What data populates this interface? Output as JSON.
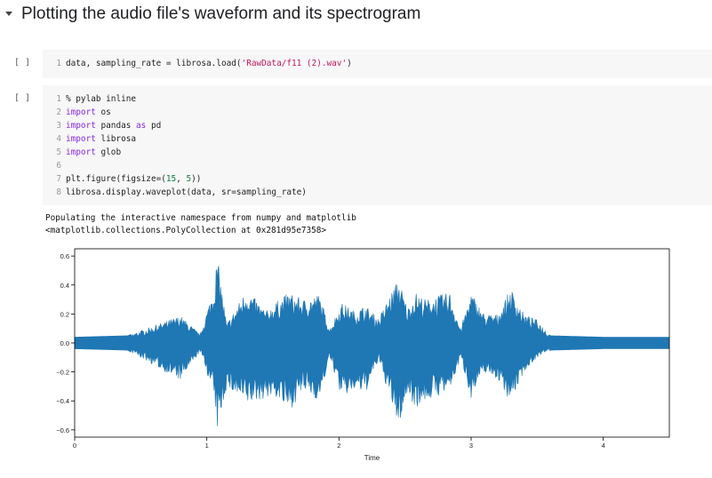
{
  "section": {
    "title": "Plotting the audio file's waveform and its spectrogram"
  },
  "cells": [
    {
      "run_label": "[ ]",
      "lines": [
        {
          "num": "1",
          "tokens": [
            {
              "t": "data, sampling_rate = librosa.load(",
              "c": ""
            },
            {
              "t": "'RawData/f11 (2).wav'",
              "c": "str"
            },
            {
              "t": ")",
              "c": ""
            }
          ]
        }
      ]
    },
    {
      "run_label": "[ ]",
      "lines": [
        {
          "num": "1",
          "tokens": [
            {
              "t": "% pylab inline",
              "c": ""
            }
          ]
        },
        {
          "num": "2",
          "tokens": [
            {
              "t": "import",
              "c": "kw"
            },
            {
              "t": " os",
              "c": ""
            }
          ]
        },
        {
          "num": "3",
          "tokens": [
            {
              "t": "import",
              "c": "kw"
            },
            {
              "t": " pandas ",
              "c": ""
            },
            {
              "t": "as",
              "c": "kw"
            },
            {
              "t": " pd",
              "c": ""
            }
          ]
        },
        {
          "num": "4",
          "tokens": [
            {
              "t": "import",
              "c": "kw"
            },
            {
              "t": " librosa",
              "c": ""
            }
          ]
        },
        {
          "num": "5",
          "tokens": [
            {
              "t": "import",
              "c": "kw"
            },
            {
              "t": " glob",
              "c": ""
            }
          ]
        },
        {
          "num": "6",
          "tokens": []
        },
        {
          "num": "7",
          "tokens": [
            {
              "t": "plt.figure(figsize=(",
              "c": ""
            },
            {
              "t": "15",
              "c": "num"
            },
            {
              "t": ", ",
              "c": ""
            },
            {
              "t": "5",
              "c": "num"
            },
            {
              "t": "))",
              "c": ""
            }
          ]
        },
        {
          "num": "8",
          "tokens": [
            {
              "t": "librosa.display.waveplot(data, sr=sampling_rate)",
              "c": ""
            }
          ]
        }
      ],
      "output": [
        "Populating the interactive namespace from numpy and matplotlib",
        "<matplotlib.collections.PolyCollection at 0x281d95e7358>"
      ]
    }
  ],
  "chart_data": {
    "type": "area",
    "title": "",
    "xlabel": "Time",
    "ylabel": "",
    "xlim": [
      0,
      4.5
    ],
    "ylim": [
      -0.65,
      0.65
    ],
    "xticks": [
      0,
      1,
      2,
      3,
      4
    ],
    "xtick_labels": [
      "0",
      "1",
      "2",
      "3",
      "4"
    ],
    "yticks": [
      0.6,
      0.4,
      0.2,
      0.0,
      -0.2,
      -0.4,
      -0.6
    ],
    "ytick_labels": [
      "0.6",
      "0.4",
      "0.2",
      "0.0",
      "−0.2",
      "−0.4",
      "−0.6"
    ],
    "grid": false,
    "color": "#1f77b4",
    "series": [
      {
        "x": [
          0,
          0.4,
          0.8,
          0.95,
          1.05,
          1.08,
          1.15,
          1.3,
          1.45,
          1.53,
          1.62,
          1.73,
          1.85,
          1.93,
          2.02,
          2.12,
          2.2,
          2.3,
          2.45,
          2.52,
          2.58,
          2.66,
          2.75,
          2.84,
          2.92,
          3.0,
          3.1,
          3.2,
          3.3,
          3.4,
          3.5,
          3.6,
          4.0,
          4.5
        ],
        "max": [
          0.04,
          0.05,
          0.19,
          0.06,
          0.38,
          0.6,
          0.13,
          0.37,
          0.22,
          0.29,
          0.35,
          0.3,
          0.34,
          0.1,
          0.28,
          0.22,
          0.26,
          0.17,
          0.45,
          0.24,
          0.35,
          0.3,
          0.33,
          0.35,
          0.1,
          0.35,
          0.2,
          0.2,
          0.38,
          0.2,
          0.16,
          0.05,
          0.04,
          0.04
        ],
        "min": [
          -0.04,
          -0.05,
          -0.26,
          -0.06,
          -0.35,
          -0.6,
          -0.31,
          -0.43,
          -0.38,
          -0.38,
          -0.48,
          -0.33,
          -0.4,
          -0.1,
          -0.38,
          -0.33,
          -0.35,
          -0.12,
          -0.58,
          -0.35,
          -0.45,
          -0.4,
          -0.37,
          -0.33,
          -0.1,
          -0.38,
          -0.2,
          -0.25,
          -0.41,
          -0.2,
          -0.1,
          -0.05,
          -0.04,
          -0.04
        ]
      }
    ]
  }
}
